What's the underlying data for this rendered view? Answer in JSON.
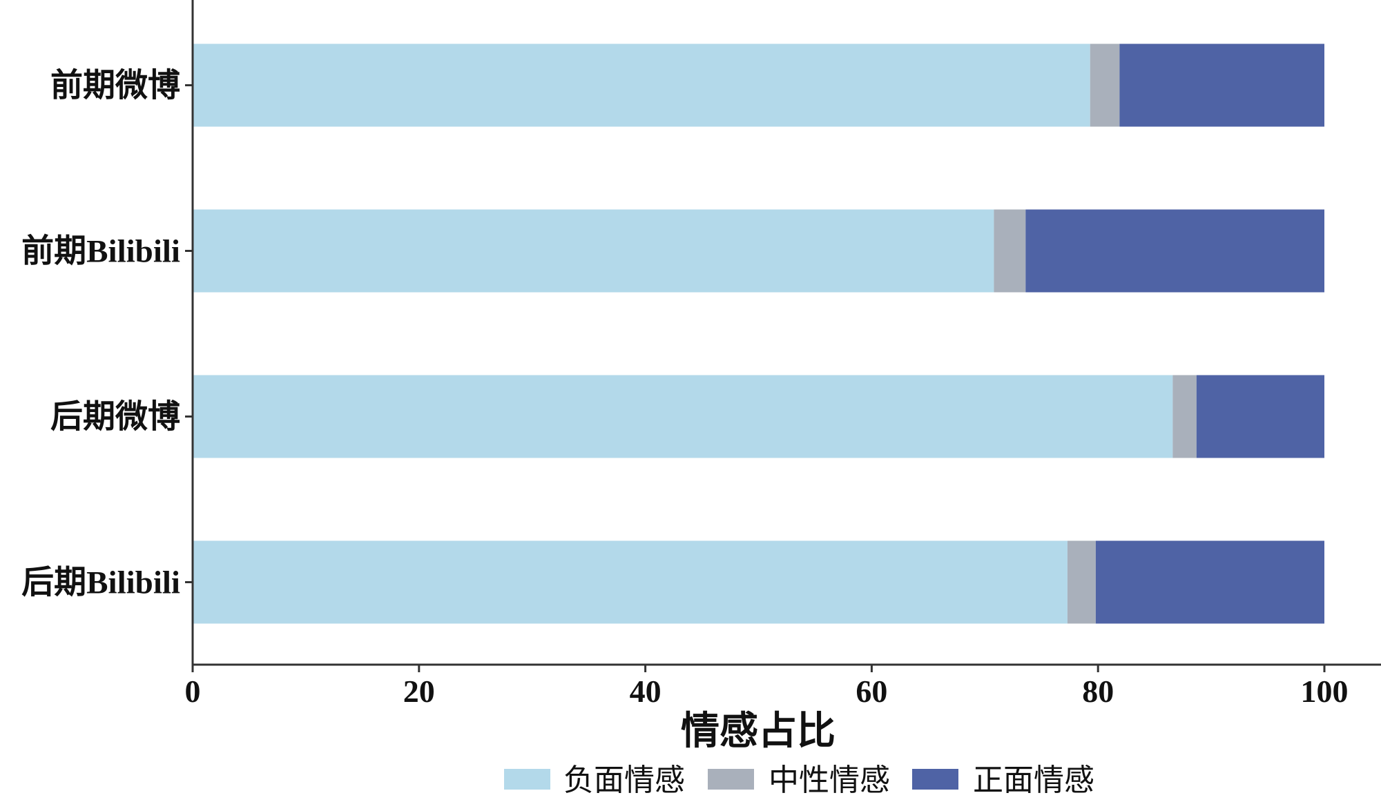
{
  "chart_data": {
    "type": "bar",
    "orientation": "horizontal",
    "stacked": true,
    "categories": [
      "前期微博",
      "前期Bilibili",
      "后期微博",
      "后期Bilibili"
    ],
    "series": [
      {
        "name": "负面情感",
        "color": "#b3d9ea",
        "values": [
          79.3,
          70.8,
          86.6,
          77.3
        ]
      },
      {
        "name": "中性情感",
        "color": "#a9b0bb",
        "values": [
          2.6,
          2.8,
          2.1,
          2.5
        ]
      },
      {
        "name": "正面情感",
        "color": "#4f63a5",
        "values": [
          18.1,
          26.4,
          11.3,
          20.2
        ]
      }
    ],
    "xlabel": "情感占比",
    "xlim": [
      0,
      100
    ],
    "xticks": [
      0,
      20,
      40,
      60,
      80,
      100
    ],
    "grid": false,
    "legend": "bottom"
  }
}
